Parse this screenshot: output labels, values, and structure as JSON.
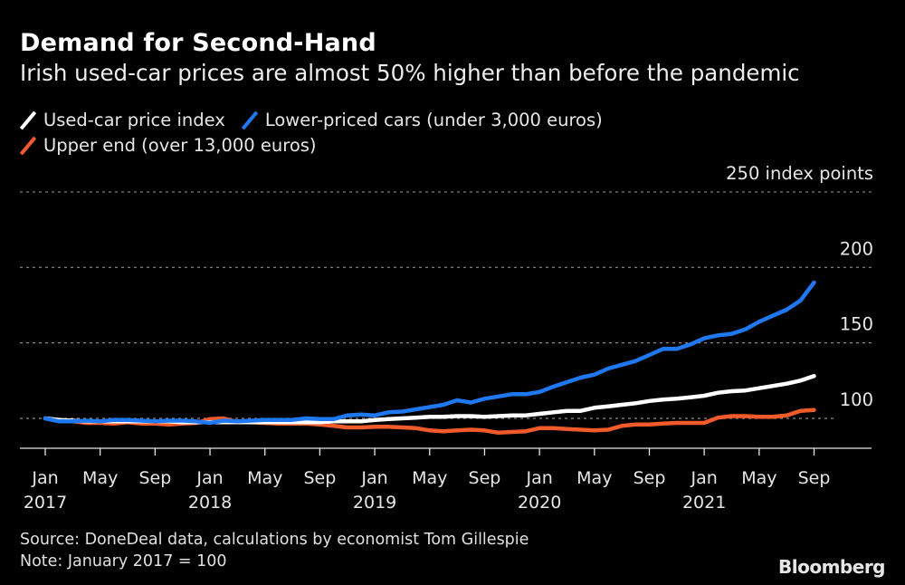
{
  "header": {
    "title": "Demand for Second-Hand",
    "subtitle": "Irish used-car prices are almost 50% higher than before the pandemic"
  },
  "legend": [
    {
      "label": "Used-car price index",
      "color": "#ffffff"
    },
    {
      "label": "Lower-priced cars (under 3,000 euros)",
      "color": "#1f78f0"
    },
    {
      "label": "Upper end (over 13,000 euros)",
      "color": "#f15a2b"
    }
  ],
  "footer": {
    "source": "Source: DoneDeal data, calculations by economist Tom Gillespie",
    "note": "Note: January 2017 = 100",
    "brand": "Bloomberg"
  },
  "chart_data": {
    "type": "line",
    "title": "Demand for Second-Hand",
    "subtitle": "Irish used-car prices are almost 50% higher than before the pandemic",
    "xlabel": "",
    "ylabel": "index points",
    "ylim": [
      80,
      250
    ],
    "y_ticks": [
      100,
      150,
      200,
      250
    ],
    "y_tick_labels": [
      "100",
      "150",
      "200",
      "250 index points"
    ],
    "grid": true,
    "legend_position": "top-left",
    "x_start": "Jan 2017",
    "x_end": "Sep 2021",
    "x_ticks": [
      {
        "month_index": 0,
        "label": "Jan",
        "year": "2017"
      },
      {
        "month_index": 4,
        "label": "May",
        "year": ""
      },
      {
        "month_index": 8,
        "label": "Sep",
        "year": ""
      },
      {
        "month_index": 12,
        "label": "Jan",
        "year": "2018"
      },
      {
        "month_index": 16,
        "label": "May",
        "year": ""
      },
      {
        "month_index": 20,
        "label": "Sep",
        "year": ""
      },
      {
        "month_index": 24,
        "label": "Jan",
        "year": "2019"
      },
      {
        "month_index": 28,
        "label": "May",
        "year": ""
      },
      {
        "month_index": 32,
        "label": "Sep",
        "year": ""
      },
      {
        "month_index": 36,
        "label": "Jan",
        "year": "2020"
      },
      {
        "month_index": 40,
        "label": "May",
        "year": ""
      },
      {
        "month_index": 44,
        "label": "Sep",
        "year": ""
      },
      {
        "month_index": 48,
        "label": "Jan",
        "year": "2021"
      },
      {
        "month_index": 52,
        "label": "May",
        "year": ""
      },
      {
        "month_index": 56,
        "label": "Sep",
        "year": ""
      }
    ],
    "series": [
      {
        "name": "Used-car price index",
        "color": "#ffffff",
        "values": [
          100,
          99,
          98.5,
          98,
          98,
          98,
          98,
          98,
          98,
          98,
          97.5,
          97.5,
          97.5,
          97.5,
          97.5,
          97.5,
          97.5,
          97.5,
          97.5,
          97.5,
          97.5,
          98,
          98,
          98,
          99,
          99.5,
          100,
          100.5,
          101,
          101,
          101.5,
          101.5,
          101,
          101.5,
          102,
          102,
          103,
          104,
          105,
          105,
          107,
          108,
          109,
          110,
          111.5,
          112.5,
          113,
          114,
          115,
          117,
          118,
          118.5,
          120,
          121.5,
          123,
          125,
          128
        ]
      },
      {
        "name": "Lower-priced cars (under 3,000 euros)",
        "color": "#1f78f0",
        "values": [
          100,
          98,
          98,
          98.5,
          98,
          99,
          99,
          98.5,
          98,
          98.5,
          98.5,
          98,
          97,
          98.5,
          98,
          98.5,
          99,
          99,
          99,
          100,
          99.5,
          99.5,
          102,
          102.5,
          102,
          104,
          104.5,
          106,
          107.5,
          109,
          112,
          110.5,
          113,
          114.5,
          116,
          116,
          117.5,
          121,
          124,
          127,
          129,
          133,
          135.5,
          138,
          142,
          146,
          146,
          149,
          153,
          155,
          156,
          159,
          164,
          168,
          172,
          178,
          190
        ]
      },
      {
        "name": "Upper end (over 13,000 euros)",
        "color": "#f15a2b",
        "values": [
          100,
          99,
          98,
          97,
          97,
          96.5,
          97.5,
          96.5,
          96.5,
          96,
          96.5,
          97,
          99.5,
          100,
          97.5,
          97.5,
          97,
          96.5,
          96.5,
          96.5,
          96,
          95,
          94,
          94,
          94.5,
          94.5,
          94,
          93.5,
          92,
          91.5,
          92,
          92.5,
          92,
          90.5,
          91,
          91.5,
          93.5,
          93.5,
          93,
          92.5,
          92,
          92.5,
          95,
          96,
          96,
          96.5,
          97,
          97,
          97,
          100.5,
          101.5,
          101.5,
          101,
          101,
          102,
          105,
          105.5
        ]
      }
    ]
  }
}
